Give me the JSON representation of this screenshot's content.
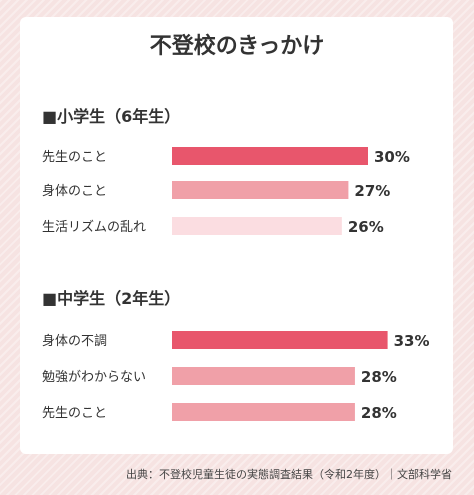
{
  "title": "不登校のきっかけ",
  "source": "出典：不登校児童生徒の実態調査結果（令和2年度）｜文部科学省",
  "chart_data": [
    {
      "type": "bar",
      "orientation": "horizontal",
      "heading": "■小学生（6年生）",
      "categories": [
        "先生のこと",
        "身体のこと",
        "生活リズムの乱れ"
      ],
      "values": [
        30,
        27,
        26
      ],
      "value_labels": [
        "30%",
        "27%",
        "26%"
      ],
      "unit": "%",
      "colors": [
        "#e8566c",
        "#f0a0a8",
        "#fbdde1"
      ]
    },
    {
      "type": "bar",
      "orientation": "horizontal",
      "heading": "■中学生（2年生）",
      "categories": [
        "身体の不調",
        "勉強がわからない",
        "先生のこと"
      ],
      "values": [
        33,
        28,
        28
      ],
      "value_labels": [
        "33%",
        "28%",
        "28%"
      ],
      "unit": "%",
      "colors": [
        "#e8566c",
        "#f0a0a8",
        "#f0a0a8"
      ]
    }
  ]
}
